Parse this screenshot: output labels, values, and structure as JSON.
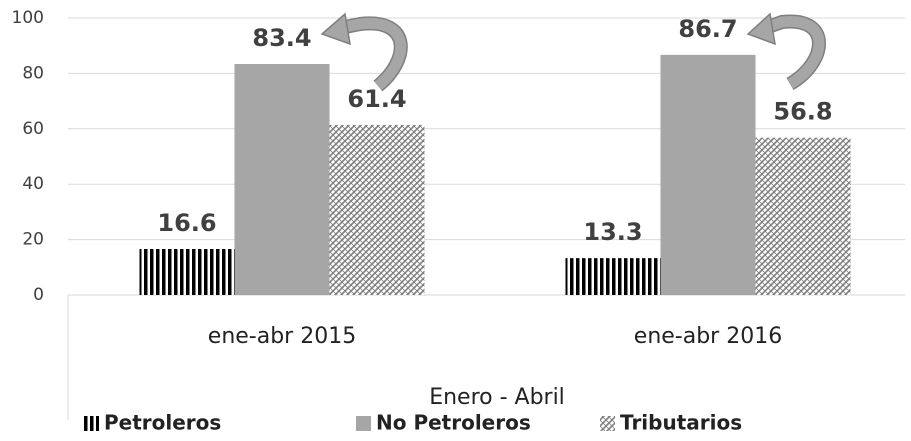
{
  "chart_data": {
    "type": "bar",
    "x_label": "Enero - Abril",
    "categories": [
      "ene-abr 2015",
      "ene-abr 2016"
    ],
    "series": [
      {
        "name": "Petroleros",
        "color": "#000000",
        "pattern": "vertical-stripes",
        "values": [
          16.6,
          13.3
        ]
      },
      {
        "name": "No Petroleros",
        "color": "#a6a6a6",
        "pattern": "solid",
        "values": [
          83.4,
          86.7
        ]
      },
      {
        "name": "Tributarios",
        "color": "#7f7f7f",
        "pattern": "diagonal-hatch",
        "values": [
          61.4,
          56.8
        ]
      }
    ],
    "ylim": [
      0,
      100
    ],
    "yticks": [
      0,
      20,
      40,
      60,
      80,
      100
    ],
    "grid": true,
    "legend": "bottom"
  }
}
